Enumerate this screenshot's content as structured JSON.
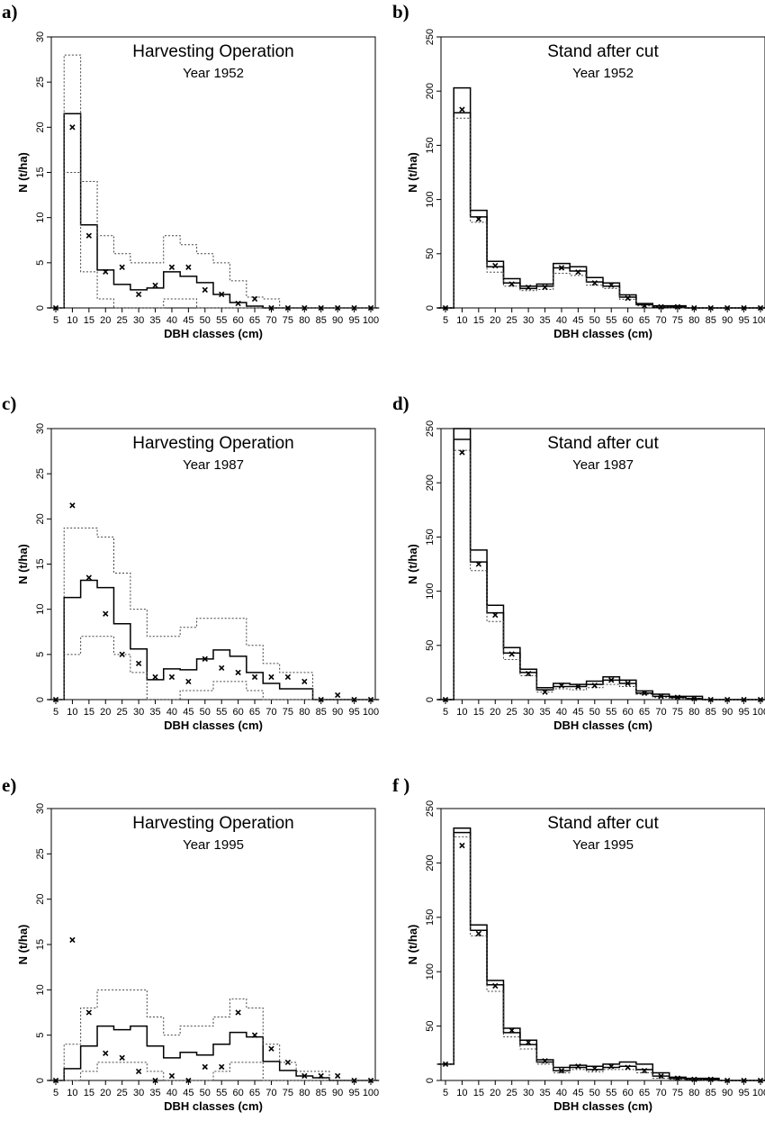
{
  "chart_data": [
    {
      "panel": "a)",
      "type": "line",
      "title": "Harvesting Operation",
      "subtitle": "Year 1952",
      "xlabel": "DBH classes (cm)",
      "ylabel": "N (t/ha)",
      "ylim": [
        0,
        30
      ],
      "yticks": [
        0,
        5,
        10,
        15,
        20,
        25,
        30
      ],
      "categories": [
        5,
        10,
        15,
        20,
        25,
        30,
        35,
        40,
        45,
        50,
        55,
        60,
        65,
        70,
        75,
        80,
        85,
        90,
        95,
        100
      ],
      "series": [
        {
          "role": "predicted_mean",
          "line": "solid",
          "values": [
            0,
            21.5,
            9.2,
            4.2,
            2.6,
            2,
            2.2,
            4,
            3.5,
            2.8,
            1.5,
            0.6,
            0.2,
            0,
            0,
            0,
            0,
            0,
            0,
            0
          ]
        },
        {
          "role": "upper_bound",
          "line": "dotted",
          "values": [
            0,
            28,
            14,
            8,
            6,
            5,
            5,
            8,
            7,
            6,
            5,
            3,
            1.2,
            1,
            0,
            0,
            0,
            0,
            0,
            0
          ]
        },
        {
          "role": "lower_bound",
          "line": "dotted",
          "values": [
            0,
            15,
            4,
            1,
            0,
            0,
            0,
            1,
            1,
            0,
            0,
            0,
            0,
            0,
            0,
            0,
            0,
            0,
            0,
            0
          ]
        },
        {
          "role": "observed",
          "marker": "x",
          "values": [
            0,
            20,
            8,
            4,
            4.5,
            1.5,
            2.5,
            4.5,
            4.5,
            2,
            1.5,
            0.5,
            1,
            0,
            0,
            0,
            0,
            0,
            0,
            0
          ]
        }
      ]
    },
    {
      "panel": "b)",
      "type": "line",
      "title": "Stand after cut",
      "subtitle": "Year 1952",
      "xlabel": "DBH classes (cm)",
      "ylabel": "N (t/ha)",
      "ylim": [
        0,
        250
      ],
      "yticks": [
        0,
        50,
        100,
        150,
        200,
        250
      ],
      "categories": [
        5,
        10,
        15,
        20,
        25,
        30,
        35,
        40,
        45,
        50,
        55,
        60,
        65,
        70,
        75,
        80,
        85,
        90,
        95,
        100
      ],
      "series": [
        {
          "role": "predicted_mean",
          "line": "solid",
          "values": [
            0,
            180,
            84,
            38,
            23,
            18,
            20,
            37,
            34,
            24,
            20,
            10,
            3,
            1,
            1,
            0,
            0,
            0,
            0,
            0
          ]
        },
        {
          "role": "upper_bound",
          "line": "solid",
          "values": [
            0,
            203,
            90,
            43,
            27,
            20,
            22,
            41,
            38,
            28,
            23,
            12,
            4,
            2,
            2,
            0,
            0,
            0,
            0,
            0
          ]
        },
        {
          "role": "lower_bound",
          "line": "dotted",
          "values": [
            0,
            175,
            79,
            33,
            20,
            16,
            17,
            32,
            30,
            21,
            18,
            8,
            2,
            1,
            0,
            0,
            0,
            0,
            0,
            0
          ]
        },
        {
          "role": "observed",
          "marker": "x",
          "values": [
            0,
            183,
            82,
            39,
            22,
            19,
            19,
            37,
            33,
            23,
            21,
            9,
            2,
            1,
            1,
            0,
            0,
            0,
            0,
            0
          ]
        }
      ]
    },
    {
      "panel": "c)",
      "type": "line",
      "title": "Harvesting Operation",
      "subtitle": "Year 1987",
      "xlabel": "DBH classes (cm)",
      "ylabel": "N (t/ha)",
      "ylim": [
        0,
        30
      ],
      "yticks": [
        0,
        5,
        10,
        15,
        20,
        25,
        30
      ],
      "categories": [
        5,
        10,
        15,
        20,
        25,
        30,
        35,
        40,
        45,
        50,
        55,
        60,
        65,
        70,
        75,
        80,
        85,
        90,
        95,
        100
      ],
      "series": [
        {
          "role": "predicted_mean",
          "line": "solid",
          "values": [
            0,
            11.3,
            13.2,
            12.4,
            8.4,
            5.6,
            2.2,
            3.4,
            3.3,
            4.5,
            5.5,
            4.8,
            3,
            1.8,
            1.2,
            1.2,
            0,
            0,
            0,
            0
          ]
        },
        {
          "role": "upper_bound",
          "line": "dotted",
          "values": [
            0,
            19,
            19,
            18,
            14,
            10,
            7,
            7,
            8,
            9,
            9,
            9,
            6,
            4,
            3,
            3,
            0,
            0,
            0,
            0
          ]
        },
        {
          "role": "lower_bound",
          "line": "dotted",
          "values": [
            0,
            5,
            7,
            7,
            5,
            3,
            0,
            0,
            1,
            1,
            2,
            2,
            1,
            0,
            0,
            0,
            0,
            0,
            0,
            0
          ]
        },
        {
          "role": "observed",
          "marker": "x",
          "values": [
            0,
            21.5,
            13.5,
            9.5,
            5,
            4,
            2.5,
            2.5,
            2,
            4.5,
            3.5,
            3,
            2.5,
            2.5,
            2.5,
            2,
            0,
            0.5,
            0,
            0
          ]
        }
      ]
    },
    {
      "panel": "d)",
      "type": "line",
      "title": "Stand after cut",
      "subtitle": "Year 1987",
      "xlabel": "DBH classes (cm)",
      "ylabel": "N (t/ha)",
      "ylim": [
        0,
        250
      ],
      "yticks": [
        0,
        50,
        100,
        150,
        200,
        250
      ],
      "categories": [
        5,
        10,
        15,
        20,
        25,
        30,
        35,
        40,
        45,
        50,
        55,
        60,
        65,
        70,
        75,
        80,
        85,
        90,
        95,
        100
      ],
      "series": [
        {
          "role": "predicted_mean",
          "line": "solid",
          "values": [
            0,
            240,
            127,
            80,
            43,
            25,
            9,
            12,
            12,
            14,
            18,
            15,
            6,
            3,
            2,
            1,
            0,
            0,
            0,
            0
          ]
        },
        {
          "role": "upper_bound",
          "line": "solid",
          "values": [
            0,
            250,
            138,
            87,
            48,
            28,
            11,
            15,
            14,
            17,
            21,
            18,
            8,
            5,
            3,
            3,
            0,
            0,
            0,
            0
          ]
        },
        {
          "role": "lower_bound",
          "line": "dotted",
          "values": [
            0,
            230,
            119,
            72,
            37,
            22,
            7,
            10,
            9,
            11,
            14,
            12,
            5,
            2,
            1,
            1,
            0,
            0,
            0,
            0
          ]
        },
        {
          "role": "observed",
          "marker": "x",
          "values": [
            0,
            228,
            125,
            78,
            42,
            24,
            7,
            13,
            12,
            13,
            18,
            15,
            6,
            3,
            2,
            1,
            0,
            0,
            0,
            0
          ]
        }
      ]
    },
    {
      "panel": "e)",
      "type": "line",
      "title": "Harvesting Operation",
      "subtitle": "Year 1995",
      "xlabel": "DBH classes (cm)",
      "ylabel": "N (t/ha)",
      "ylim": [
        0,
        30
      ],
      "yticks": [
        0,
        5,
        10,
        15,
        20,
        25,
        30
      ],
      "categories": [
        5,
        10,
        15,
        20,
        25,
        30,
        35,
        40,
        45,
        50,
        55,
        60,
        65,
        70,
        75,
        80,
        85,
        90,
        95,
        100
      ],
      "series": [
        {
          "role": "predicted_mean",
          "line": "solid",
          "values": [
            0,
            1.3,
            3.8,
            6,
            5.6,
            6,
            3.8,
            2.5,
            3.1,
            2.8,
            4,
            5.3,
            4.8,
            2.1,
            1.1,
            0.5,
            0.3,
            0,
            0,
            0
          ]
        },
        {
          "role": "upper_bound",
          "line": "dotted",
          "values": [
            0,
            4,
            8,
            10,
            10,
            10,
            7,
            5,
            6,
            6,
            7,
            9,
            8,
            4,
            2,
            1,
            1,
            0,
            0,
            0
          ]
        },
        {
          "role": "lower_bound",
          "line": "dotted",
          "values": [
            0,
            0,
            1,
            2,
            2,
            2,
            1,
            0,
            0,
            0,
            1,
            2,
            2,
            0,
            0,
            0,
            0,
            0,
            0,
            0
          ]
        },
        {
          "role": "observed",
          "marker": "x",
          "values": [
            0,
            15.5,
            7.5,
            3,
            2.5,
            1,
            0,
            0.5,
            0,
            1.5,
            1.5,
            7.5,
            5,
            3.5,
            2,
            0.5,
            0.5,
            0.5,
            0,
            0
          ]
        }
      ]
    },
    {
      "panel": "f )",
      "type": "line",
      "title": "Stand after cut",
      "subtitle": "Year 1995",
      "xlabel": "DBH classes (cm)",
      "ylabel": "N (t/ha)",
      "ylim": [
        0,
        250
      ],
      "yticks": [
        0,
        50,
        100,
        150,
        200,
        250
      ],
      "categories": [
        5,
        10,
        15,
        20,
        25,
        30,
        35,
        40,
        45,
        50,
        55,
        60,
        65,
        70,
        75,
        80,
        85,
        90,
        95,
        100
      ],
      "series": [
        {
          "role": "predicted_mean",
          "line": "solid",
          "values": [
            15,
            228,
            138,
            88,
            44,
            33,
            17,
            9,
            12,
            10,
            12,
            13,
            10,
            4,
            2,
            1,
            1,
            0,
            0,
            0
          ]
        },
        {
          "role": "upper_bound",
          "line": "solid",
          "values": [
            15,
            232,
            143,
            92,
            48,
            37,
            19,
            12,
            14,
            13,
            15,
            17,
            15,
            7,
            3,
            2,
            2,
            0,
            0,
            0
          ]
        },
        {
          "role": "lower_bound",
          "line": "dotted",
          "values": [
            15,
            224,
            133,
            82,
            40,
            29,
            15,
            7,
            10,
            8,
            10,
            10,
            7,
            2,
            1,
            1,
            0,
            0,
            0,
            0
          ]
        },
        {
          "role": "observed",
          "marker": "x",
          "values": [
            15,
            216,
            135,
            87,
            46,
            35,
            18,
            9,
            13,
            11,
            13,
            12,
            9,
            4,
            2,
            1,
            1,
            0,
            0,
            0
          ]
        }
      ]
    }
  ]
}
